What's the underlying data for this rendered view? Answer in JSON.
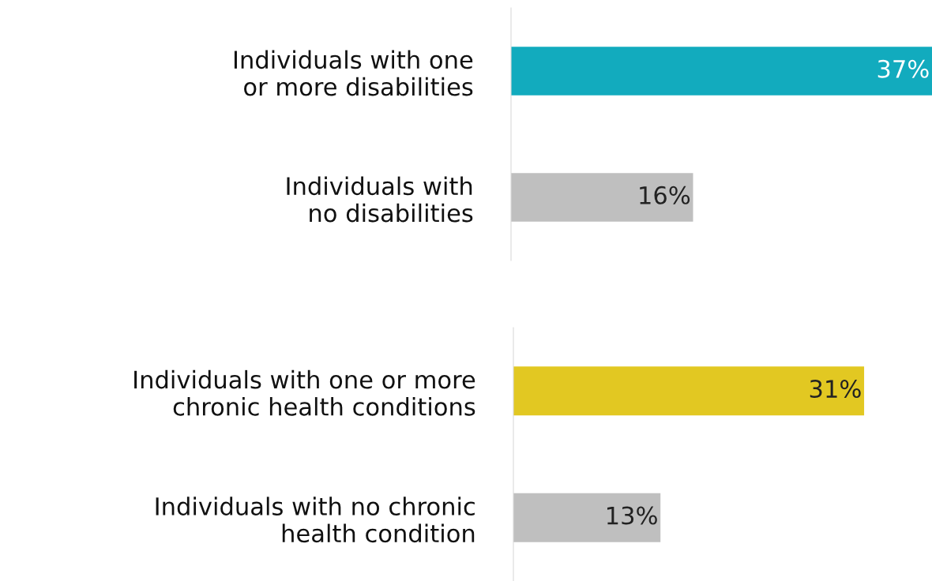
{
  "chart_data": [
    {
      "type": "bar",
      "orientation": "horizontal",
      "grid": false,
      "tick_labels": "y",
      "categories": [
        "Individuals with one\nor more disabilities",
        "Individuals with\nno disabilities"
      ],
      "values": [
        37,
        16
      ],
      "value_labels": [
        "37%",
        "16%"
      ],
      "colors": [
        "#12abbe",
        "#bfbfbf"
      ]
    },
    {
      "type": "bar",
      "orientation": "horizontal",
      "grid": false,
      "tick_labels": "y",
      "categories": [
        "Individuals with one or more\nchronic health conditions",
        "Individuals with no chronic\nhealth condition"
      ],
      "values": [
        31,
        13
      ],
      "value_labels": [
        "31%",
        "13%"
      ],
      "colors": [
        "#e2c822",
        "#bfbfbf"
      ]
    }
  ]
}
